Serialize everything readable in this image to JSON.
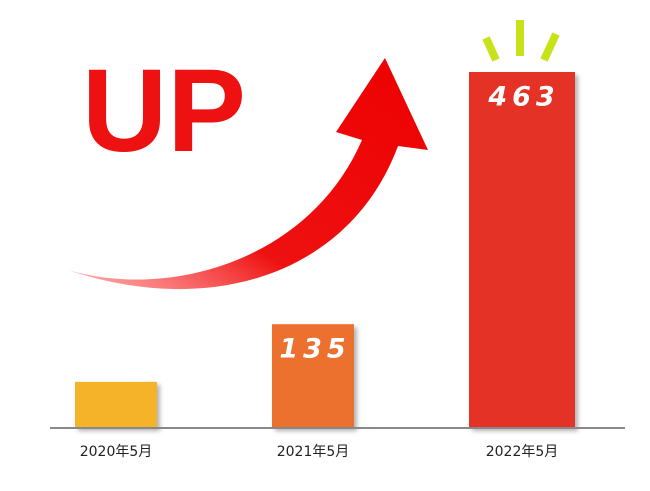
{
  "chart_data": {
    "type": "bar",
    "annotation": "UP",
    "categories": [
      "2020年5月",
      "2021年5月",
      "2022年5月"
    ],
    "values": [
      60,
      135,
      463
    ],
    "value_labels": [
      null,
      "135",
      "463"
    ],
    "colors": [
      "#f5b32a",
      "#ec6f2d",
      "#e53228"
    ]
  }
}
